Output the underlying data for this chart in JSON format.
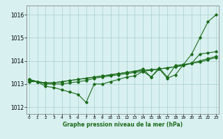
{
  "x": [
    0,
    1,
    2,
    3,
    4,
    5,
    6,
    7,
    8,
    9,
    10,
    11,
    12,
    13,
    14,
    15,
    16,
    17,
    18,
    19,
    20,
    21,
    22,
    23
  ],
  "line1": [
    1013.2,
    1013.1,
    1012.9,
    1012.85,
    1012.75,
    1012.65,
    1012.55,
    1012.2,
    1013.0,
    1013.0,
    1013.1,
    1013.2,
    1013.3,
    1013.35,
    1013.55,
    1013.3,
    1013.65,
    1013.25,
    1013.4,
    1013.85,
    1014.3,
    1015.0,
    1015.7,
    1016.0
  ],
  "line2": [
    1013.1,
    1013.1,
    1013.0,
    1013.0,
    1013.0,
    1013.05,
    1013.1,
    1013.15,
    1013.25,
    1013.3,
    1013.35,
    1013.4,
    1013.45,
    1013.5,
    1013.55,
    1013.6,
    1013.65,
    1013.7,
    1013.75,
    1013.8,
    1013.9,
    1014.0,
    1014.1,
    1014.2
  ],
  "line3": [
    1013.15,
    1013.1,
    1013.05,
    1013.05,
    1013.1,
    1013.15,
    1013.2,
    1013.25,
    1013.3,
    1013.35,
    1013.4,
    1013.45,
    1013.5,
    1013.55,
    1013.6,
    1013.62,
    1013.65,
    1013.7,
    1013.75,
    1013.82,
    1013.9,
    1013.95,
    1014.05,
    1014.15
  ],
  "line4": [
    1013.2,
    1013.1,
    1013.05,
    1013.05,
    1013.1,
    1013.15,
    1013.2,
    1013.25,
    1013.3,
    1013.35,
    1013.4,
    1013.45,
    1013.5,
    1013.55,
    1013.65,
    1013.3,
    1013.7,
    1013.3,
    1013.8,
    1013.85,
    1013.9,
    1014.3,
    1014.35,
    1014.4
  ],
  "yticks": [
    1012,
    1013,
    1014,
    1015,
    1016
  ],
  "xticks": [
    0,
    1,
    2,
    3,
    4,
    5,
    6,
    7,
    8,
    9,
    10,
    11,
    12,
    13,
    14,
    15,
    16,
    17,
    18,
    19,
    20,
    21,
    22,
    23
  ],
  "ylim": [
    1011.7,
    1016.4
  ],
  "xlim": [
    -0.3,
    23.3
  ],
  "line_color": "#1a6b1a",
  "bg_color": "#d8f0f0",
  "grid_color": "#aacece",
  "xlabel": "Graphe pression niveau de la mer (hPa)",
  "marker": "D",
  "marker_size": 1.8,
  "line_width": 0.8
}
